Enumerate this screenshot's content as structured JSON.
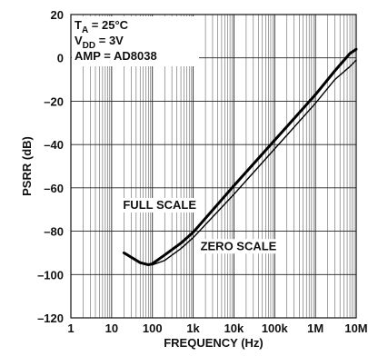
{
  "chart_data": {
    "type": "line",
    "xlabel": "FREQUENCY (Hz)",
    "ylabel": "PSRR (dB)",
    "xscale": "log",
    "xlim": [
      1,
      10000000
    ],
    "ylim": [
      -120,
      20
    ],
    "grid": true,
    "x_tick_labels": [
      "1",
      "10",
      "100",
      "1k",
      "10k",
      "100k",
      "1M",
      "10M"
    ],
    "y_tick_labels": [
      "20",
      "0",
      "–20",
      "–40",
      "–60",
      "–80",
      "–100",
      "–120"
    ],
    "y_ticks": [
      20,
      0,
      -20,
      -40,
      -60,
      -80,
      -100,
      -120
    ],
    "annotations": [
      {
        "base": "T",
        "sub": "A",
        "rest": " = 25°C"
      },
      {
        "base": "V",
        "sub": "DD",
        "rest": " = 3V"
      },
      {
        "base": "AMP = AD8038",
        "sub": "",
        "rest": ""
      }
    ],
    "series": [
      {
        "name": "FULL SCALE",
        "x": [
          20,
          50,
          80,
          100,
          200,
          500,
          1000,
          10000,
          100000,
          1000000,
          3000000,
          7000000,
          10000000
        ],
        "y": [
          -90,
          -94.5,
          -95.5,
          -95,
          -91,
          -85.5,
          -80.5,
          -59,
          -38,
          -17,
          -6,
          2,
          4
        ]
      },
      {
        "name": "ZERO SCALE",
        "x": [
          80,
          100,
          200,
          500,
          1000,
          10000,
          100000,
          1000000,
          3000000,
          7000000,
          10000000
        ],
        "y": [
          -95.5,
          -95.5,
          -93.5,
          -88,
          -83,
          -63,
          -42,
          -21,
          -10,
          -4,
          -1
        ]
      }
    ],
    "series_label_positions": [
      {
        "x": 20,
        "y": -68
      },
      {
        "x": 1000,
        "y": -87
      }
    ]
  }
}
